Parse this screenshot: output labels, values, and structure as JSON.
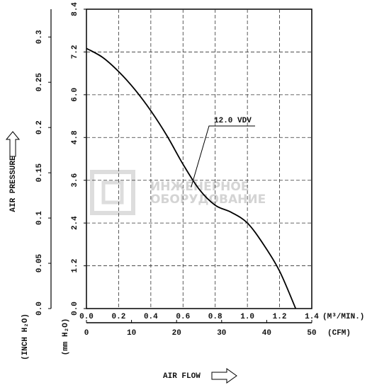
{
  "chart_data": {
    "type": "line",
    "series": [
      {
        "name": "12.0 VDV",
        "color": "#000000",
        "x": [
          0,
          0.1,
          0.2,
          0.3,
          0.4,
          0.5,
          0.6,
          0.7,
          0.8,
          0.9,
          1.0,
          1.1,
          1.2,
          1.3
        ],
        "values": [
          7.3,
          7.05,
          6.65,
          6.15,
          5.55,
          4.85,
          4.05,
          3.35,
          2.9,
          2.7,
          2.4,
          1.8,
          1.05,
          0
        ]
      }
    ],
    "xlim": [
      0,
      1.4
    ],
    "xticks": [
      {
        "value": 0,
        "label": "0.0"
      },
      0.2,
      0.4,
      0.6,
      0.8,
      {
        "value": 1,
        "label": "1.0"
      },
      1.2,
      1.4
    ],
    "x2lim": [
      0,
      50
    ],
    "x2ticks": [
      0,
      10,
      20,
      30,
      40,
      50
    ],
    "ylim": [
      0,
      8.4
    ],
    "yticks": [
      {
        "value": 0,
        "label": "0.0"
      },
      1.2,
      2.4,
      3.6,
      4.8,
      {
        "value": 6,
        "label": "6.0"
      },
      7.2,
      8.4
    ],
    "y2lim": [
      0,
      0.3307
    ],
    "y2ticks": [
      {
        "value": 0,
        "label": "0.0"
      },
      0.05,
      0.1,
      0.15,
      0.2,
      0.25,
      0.3
    ],
    "grid": true,
    "y_label": "AIR PRESSURE",
    "y_unit": "(mm H₂O)",
    "y2_unit": "(INCH H₂O)",
    "x_label": "AIR FLOW",
    "x_unit": "(M³/MIN.)",
    "x2_unit": "(CFM)",
    "watermark": [
      "ИНЖЕНЕРНОЕ",
      "ОБОРУДОВАНИЕ"
    ]
  }
}
